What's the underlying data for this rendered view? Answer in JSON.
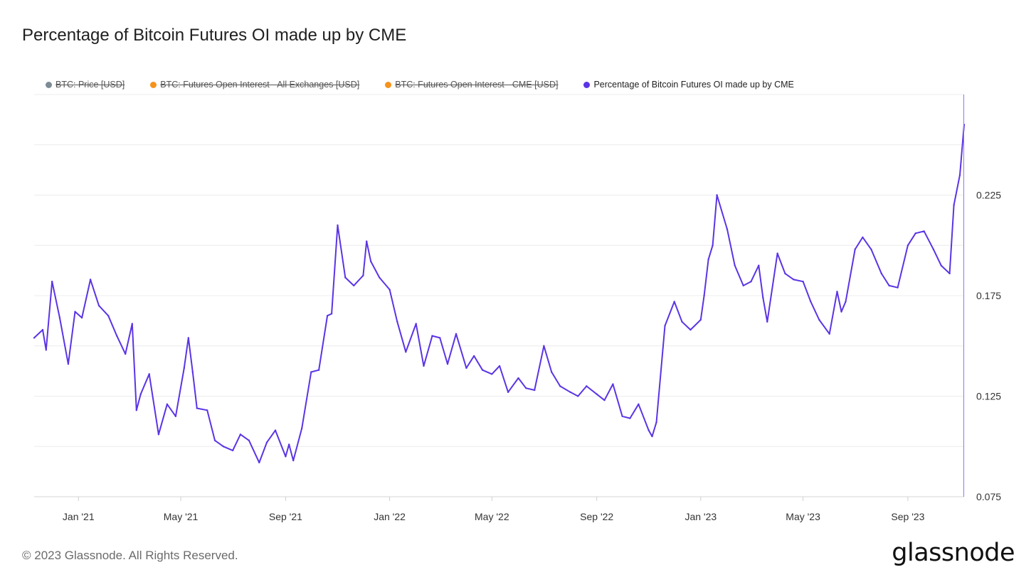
{
  "title": "Percentage of Bitcoin Futures OI made up by CME",
  "legend": [
    {
      "label": "BTC: Price [USD]",
      "color": "#7d8b94",
      "active": false
    },
    {
      "label": "BTC: Futures Open Interest - All Exchanges [USD]",
      "color": "#f7931a",
      "active": false
    },
    {
      "label": "BTC: Futures Open Interest - CME [USD]",
      "color": "#f7931a",
      "active": false
    },
    {
      "label": "Percentage of Bitcoin Futures OI made up by CME",
      "color": "#5b34e5",
      "active": true
    }
  ],
  "footer": "© 2023 Glassnode. All Rights Reserved.",
  "brand": "glassnode",
  "chart_data": {
    "type": "line",
    "title": "Percentage of Bitcoin Futures OI made up by CME",
    "xlabel": "",
    "ylabel": "",
    "x_ticks": [
      "Jan '21",
      "May '21",
      "Sep '21",
      "Jan '22",
      "May '22",
      "Sep '22",
      "Jan '23",
      "May '23",
      "Sep '23"
    ],
    "y_ticks": [
      0.075,
      0.125,
      0.175,
      0.225
    ],
    "y_tick_labels": [
      "0.075",
      "0.125",
      "0.175",
      "0.225"
    ],
    "ylim": [
      0.075,
      0.275
    ],
    "xlim": [
      "2020-11-10",
      "2023-11-06"
    ],
    "grid": "horizontal",
    "legend_position": "top-left",
    "series": [
      {
        "name": "Percentage of Bitcoin Futures OI made up by CME",
        "color": "#5b34e5",
        "x": [
          "2020-11-10",
          "2020-11-20",
          "2020-11-24",
          "2020-12-01",
          "2020-12-10",
          "2020-12-20",
          "2020-12-28",
          "2021-01-05",
          "2021-01-15",
          "2021-01-25",
          "2021-02-05",
          "2021-02-15",
          "2021-02-25",
          "2021-03-05",
          "2021-03-10",
          "2021-03-15",
          "2021-03-25",
          "2021-04-05",
          "2021-04-15",
          "2021-04-25",
          "2021-05-05",
          "2021-05-10",
          "2021-05-15",
          "2021-05-20",
          "2021-06-01",
          "2021-06-10",
          "2021-06-20",
          "2021-07-01",
          "2021-07-10",
          "2021-07-20",
          "2021-08-01",
          "2021-08-10",
          "2021-08-20",
          "2021-09-01",
          "2021-09-05",
          "2021-09-10",
          "2021-09-20",
          "2021-10-01",
          "2021-10-10",
          "2021-10-20",
          "2021-10-25",
          "2021-11-01",
          "2021-11-10",
          "2021-11-20",
          "2021-12-01",
          "2021-12-05",
          "2021-12-10",
          "2021-12-20",
          "2022-01-01",
          "2022-01-10",
          "2022-01-20",
          "2022-02-01",
          "2022-02-10",
          "2022-02-20",
          "2022-03-01",
          "2022-03-10",
          "2022-03-20",
          "2022-04-01",
          "2022-04-10",
          "2022-04-20",
          "2022-05-01",
          "2022-05-10",
          "2022-05-20",
          "2022-06-01",
          "2022-06-10",
          "2022-06-20",
          "2022-07-01",
          "2022-07-10",
          "2022-07-20",
          "2022-08-01",
          "2022-08-10",
          "2022-08-20",
          "2022-09-01",
          "2022-09-10",
          "2022-09-20",
          "2022-10-01",
          "2022-10-10",
          "2022-10-20",
          "2022-11-01",
          "2022-11-05",
          "2022-11-10",
          "2022-11-20",
          "2022-12-01",
          "2022-12-10",
          "2022-12-20",
          "2023-01-01",
          "2023-01-05",
          "2023-01-10",
          "2023-01-15",
          "2023-01-20",
          "2023-02-01",
          "2023-02-10",
          "2023-02-20",
          "2023-03-01",
          "2023-03-10",
          "2023-03-15",
          "2023-03-20",
          "2023-04-01",
          "2023-04-10",
          "2023-04-20",
          "2023-05-01",
          "2023-05-10",
          "2023-05-20",
          "2023-06-01",
          "2023-06-10",
          "2023-06-15",
          "2023-06-20",
          "2023-07-01",
          "2023-07-10",
          "2023-07-20",
          "2023-08-01",
          "2023-08-10",
          "2023-08-20",
          "2023-09-01",
          "2023-09-10",
          "2023-09-20",
          "2023-10-01",
          "2023-10-10",
          "2023-10-20",
          "2023-10-25",
          "2023-11-01",
          "2023-11-06"
        ],
        "y": [
          0.154,
          0.158,
          0.148,
          0.182,
          0.164,
          0.141,
          0.167,
          0.164,
          0.183,
          0.17,
          0.165,
          0.155,
          0.146,
          0.161,
          0.118,
          0.126,
          0.136,
          0.106,
          0.121,
          0.115,
          0.139,
          0.154,
          0.137,
          0.119,
          0.118,
          0.103,
          0.1,
          0.098,
          0.106,
          0.103,
          0.092,
          0.102,
          0.108,
          0.095,
          0.101,
          0.093,
          0.109,
          0.137,
          0.138,
          0.165,
          0.166,
          0.21,
          0.184,
          0.18,
          0.185,
          0.202,
          0.192,
          0.184,
          0.178,
          0.162,
          0.147,
          0.161,
          0.14,
          0.155,
          0.154,
          0.141,
          0.156,
          0.139,
          0.145,
          0.138,
          0.136,
          0.14,
          0.127,
          0.134,
          0.129,
          0.128,
          0.15,
          0.137,
          0.13,
          0.127,
          0.125,
          0.13,
          0.126,
          0.123,
          0.131,
          0.115,
          0.114,
          0.121,
          0.108,
          0.105,
          0.112,
          0.16,
          0.172,
          0.162,
          0.158,
          0.163,
          0.175,
          0.193,
          0.2,
          0.225,
          0.208,
          0.19,
          0.18,
          0.182,
          0.19,
          0.174,
          0.162,
          0.196,
          0.186,
          0.183,
          0.182,
          0.172,
          0.163,
          0.156,
          0.177,
          0.167,
          0.172,
          0.198,
          0.204,
          0.198,
          0.186,
          0.18,
          0.179,
          0.2,
          0.206,
          0.207,
          0.198,
          0.19,
          0.186,
          0.22,
          0.235,
          0.26
        ]
      }
    ]
  }
}
